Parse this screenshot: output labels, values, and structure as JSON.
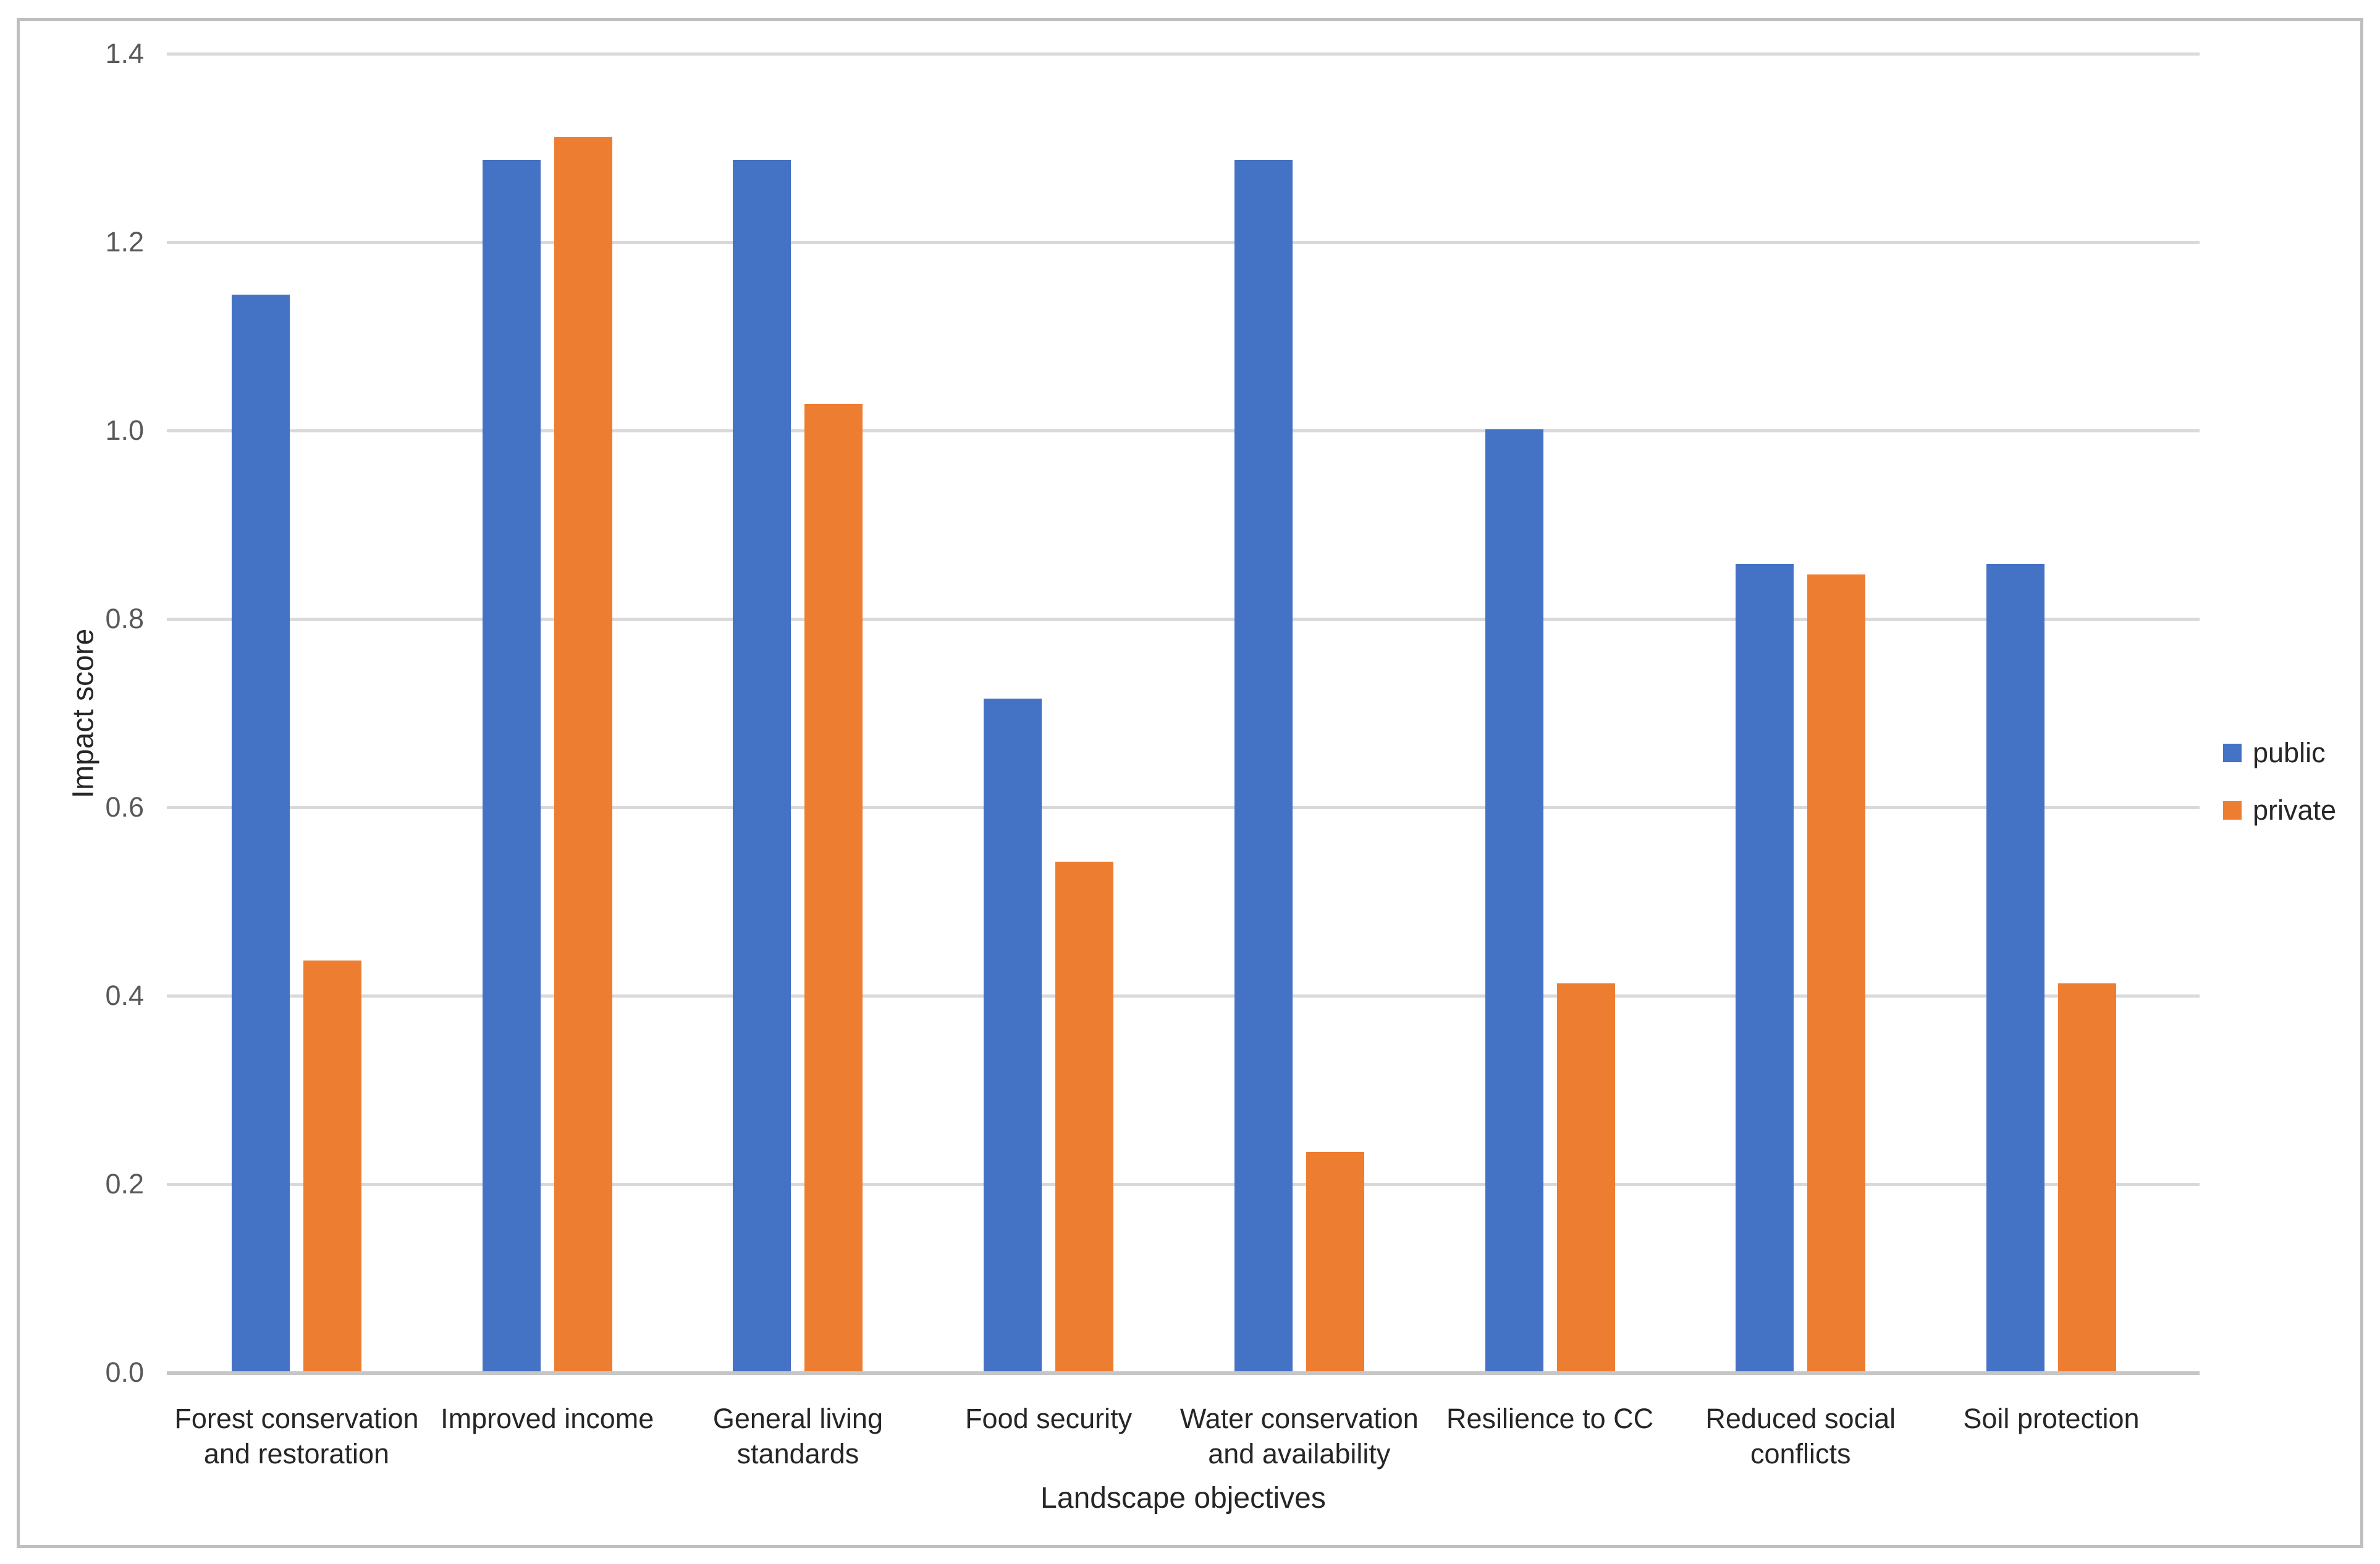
{
  "figure": {
    "y_axis_title": "Impact score",
    "x_axis_title": "Landscape objectives"
  },
  "legend": {
    "position": "right",
    "items": [
      {
        "label": "public",
        "color": "#4472C4"
      },
      {
        "label": "private",
        "color": "#ED7D31"
      }
    ]
  },
  "chart_data": {
    "type": "bar",
    "title": "",
    "xlabel": "Landscape objectives",
    "ylabel": "Impact score",
    "ylim": [
      0,
      1.4
    ],
    "yticks": [
      0.0,
      0.2,
      0.4,
      0.6,
      0.8,
      1.0,
      1.2,
      1.4
    ],
    "grid": true,
    "legend_position": "right",
    "categories": [
      "Forest conservation and restoration",
      "Improved income",
      "General living standards",
      "Food security",
      "Water conservation and availability",
      "Resilience to CC",
      "Reduced social conflicts",
      "Soil protection"
    ],
    "series": [
      {
        "name": "public",
        "color": "#4472C4",
        "values": [
          1.143,
          1.286,
          1.286,
          0.714,
          1.286,
          1.0,
          0.857,
          0.857
        ]
      },
      {
        "name": "private",
        "color": "#ED7D31",
        "values": [
          0.436,
          1.31,
          1.027,
          0.541,
          0.233,
          0.412,
          0.846,
          0.412
        ]
      }
    ]
  }
}
